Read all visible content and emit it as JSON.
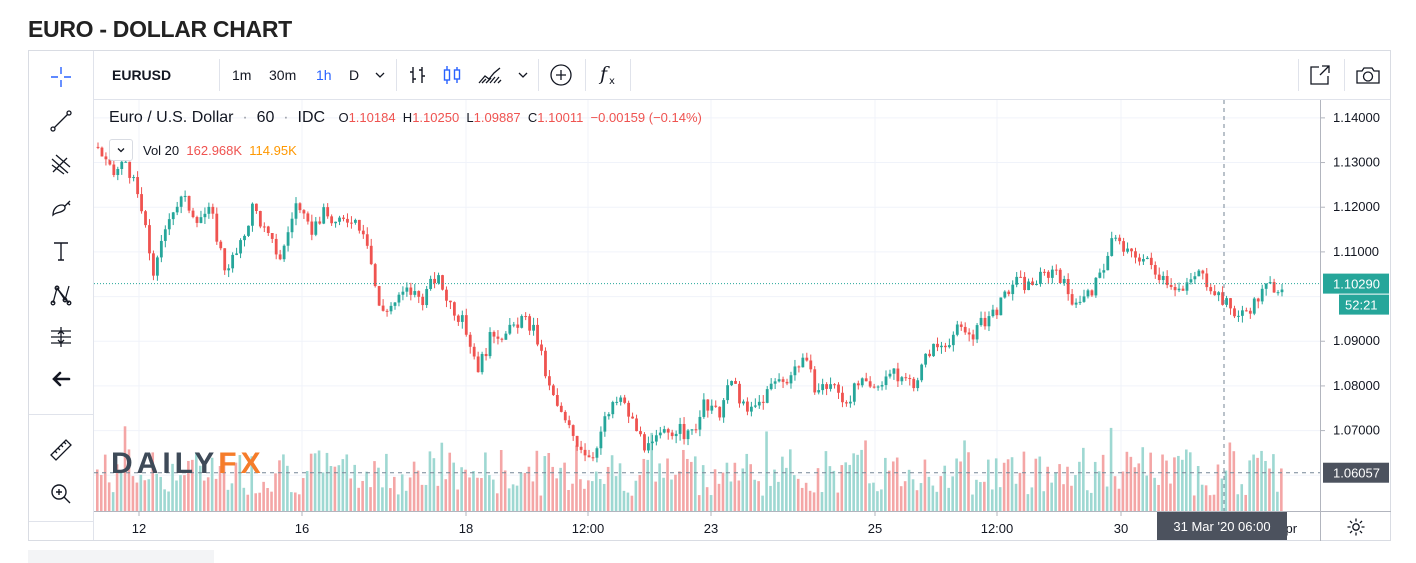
{
  "page": {
    "title": "EURO - DOLLAR CHART"
  },
  "toolbar": {
    "symbol": "EURUSD",
    "intervals": [
      "1m",
      "30m",
      "1h",
      "D"
    ],
    "active_interval": "1h",
    "icons": [
      "interval-dropdown-icon",
      "bars-icon",
      "candles-icon",
      "area-icon",
      "chart-type-dropdown-icon",
      "compare-add-icon",
      "indicators-fx-icon",
      "fullscreen-popout-icon",
      "camera-icon"
    ]
  },
  "left_tools": [
    "crosshair-icon",
    "trend-line-icon",
    "fib-pitchfork-icon",
    "brush-icon",
    "text-icon",
    "pattern-icon",
    "prediction-icon",
    "arrow-back-icon",
    "ruler-icon",
    "zoom-in-icon"
  ],
  "legend": {
    "name": "Euro / U.S. Dollar",
    "interval": "60",
    "source": "IDC",
    "o_label": "O",
    "o": "1.10184",
    "h_label": "H",
    "h": "1.10250",
    "l_label": "L",
    "l": "1.09887",
    "c_label": "C",
    "c": "1.10011",
    "change": "−0.00159 (−0.14%)"
  },
  "volume": {
    "label": "Vol 20",
    "value": "162.968K",
    "ma": "114.95K"
  },
  "watermark": {
    "a": "DAILY",
    "b": "FX"
  },
  "colors": {
    "up": "#26a69a",
    "down": "#ef5350",
    "vol_up": "#9ed8d2",
    "vol_down": "#f4a6a6",
    "accent": "#2962ff",
    "watermark_fx": "#f57c2a"
  },
  "chart_data": {
    "type": "candlestick",
    "symbol": "EURUSD",
    "x_ticks": [
      "12",
      "16",
      "18",
      "12:00",
      "23",
      "25",
      "12:00",
      "30",
      "31 Mar '20  06:00",
      "Apr"
    ],
    "y_ticks": [
      "1.14000",
      "1.13000",
      "1.12000",
      "1.11000",
      "1.09000",
      "1.08000",
      "1.07000"
    ],
    "ylim": [
      1.052,
      1.144
    ],
    "last_price": "1.10290",
    "countdown": "52:21",
    "crosshair_price": "1.06057",
    "crosshair_time": "31 Mar '20  06:00",
    "close_path": [
      1.1335,
      1.127,
      1.1305,
      1.1205,
      1.1045,
      1.1185,
      1.122,
      1.118,
      1.119,
      1.1065,
      1.11,
      1.1205,
      1.1135,
      1.1085,
      1.121,
      1.1145,
      1.1185,
      1.116,
      1.118,
      1.1145,
      1.0965,
      1.0985,
      1.1015,
      1.0995,
      1.1045,
      1.0985,
      1.0935,
      1.084,
      1.092,
      1.0915,
      1.095,
      1.0925,
      1.0795,
      1.0725,
      1.0675,
      1.064,
      1.0725,
      1.0775,
      1.0715,
      1.0655,
      1.069,
      1.0705,
      1.0685,
      1.0755,
      1.0735,
      1.0815,
      1.0735,
      1.0765,
      1.081,
      1.082,
      1.0865,
      1.079,
      1.0805,
      1.0765,
      1.0805,
      1.079,
      1.083,
      1.0815,
      1.081,
      1.088,
      1.0895,
      1.0925,
      1.0915,
      1.095,
      1.098,
      1.1035,
      1.1025,
      1.1045,
      1.1065,
      1.0995,
      1.0995,
      1.1035,
      1.1135,
      1.1095,
      1.109,
      1.106,
      1.1035,
      1.101,
      1.1055,
      1.1025,
      1.0985,
      1.0955,
      1.0985,
      1.1025,
      1.1025
    ],
    "volume_ylim": [
      0,
      100
    ]
  }
}
